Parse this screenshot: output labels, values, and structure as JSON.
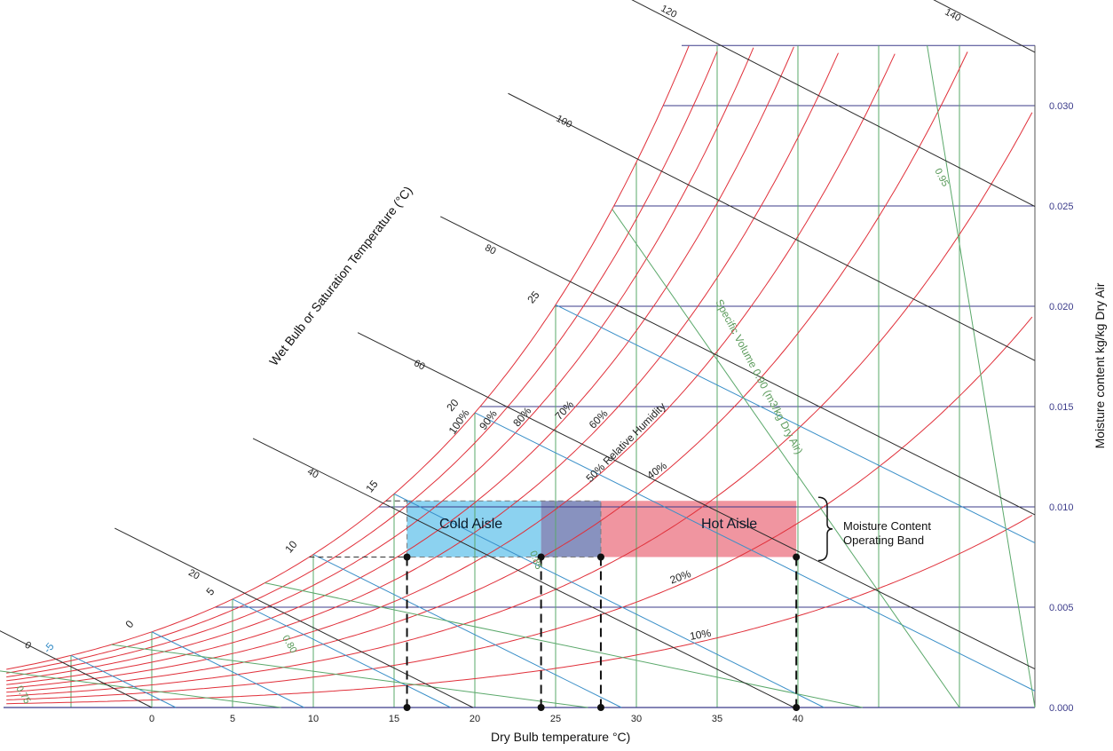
{
  "chart_data": {
    "type": "line",
    "xlabel": "Dry Bulb temperature °C)",
    "ylabel": "Moisture content kg/kg Dry Air",
    "wet_bulb_axis_label": "Wet Bulb or Saturation Temperature (°C)",
    "x_ticks": [
      "0",
      "5",
      "10",
      "15",
      "20",
      "25",
      "30",
      "35",
      "40"
    ],
    "y_ticks": [
      "0.000",
      "0.005",
      "0.010",
      "0.015",
      "0.020",
      "0.025",
      "0.030"
    ],
    "xlim": [
      -9,
      45
    ],
    "ylim": [
      0,
      0.033
    ],
    "relative_humidity_labels": [
      "100%",
      "90%",
      "80%",
      "70%",
      "60%",
      "50% Relative Humidity",
      "40%",
      "20%",
      "10%"
    ],
    "wet_bulb_labels": [
      "25",
      "20",
      "15",
      "10",
      "5",
      "0",
      "-5"
    ],
    "enthalpy_labels": [
      "140",
      "120",
      "100",
      "80",
      "60",
      "40",
      "20",
      "0"
    ],
    "specific_volume_labels": [
      "0.95",
      "Specific Volume 0.90 (m3/kg Dry Air)",
      "0.85",
      "0.80",
      "0.75"
    ],
    "zones": [
      {
        "name": "Cold Aisle",
        "x_range": [
          15.8,
          24.1
        ],
        "color": "#7fcdee"
      },
      {
        "name": "Hot Aisle",
        "x_range": [
          27.8,
          39.9
        ],
        "color": "#ee8a96"
      }
    ],
    "overlap_color": "#7b86b8",
    "band": {
      "label": "Moisture Content Operating Band",
      "y_range": [
        0.0075,
        0.0103
      ]
    },
    "markers_x": [
      15.8,
      24.1,
      27.8,
      39.9
    ],
    "colors": {
      "rh": "#e0303a",
      "enthalpy": "#2a2a2a",
      "wetbulb": "#3a8fc8",
      "volume": "#5aa86a",
      "horizontal": "#3b3b8a"
    }
  }
}
